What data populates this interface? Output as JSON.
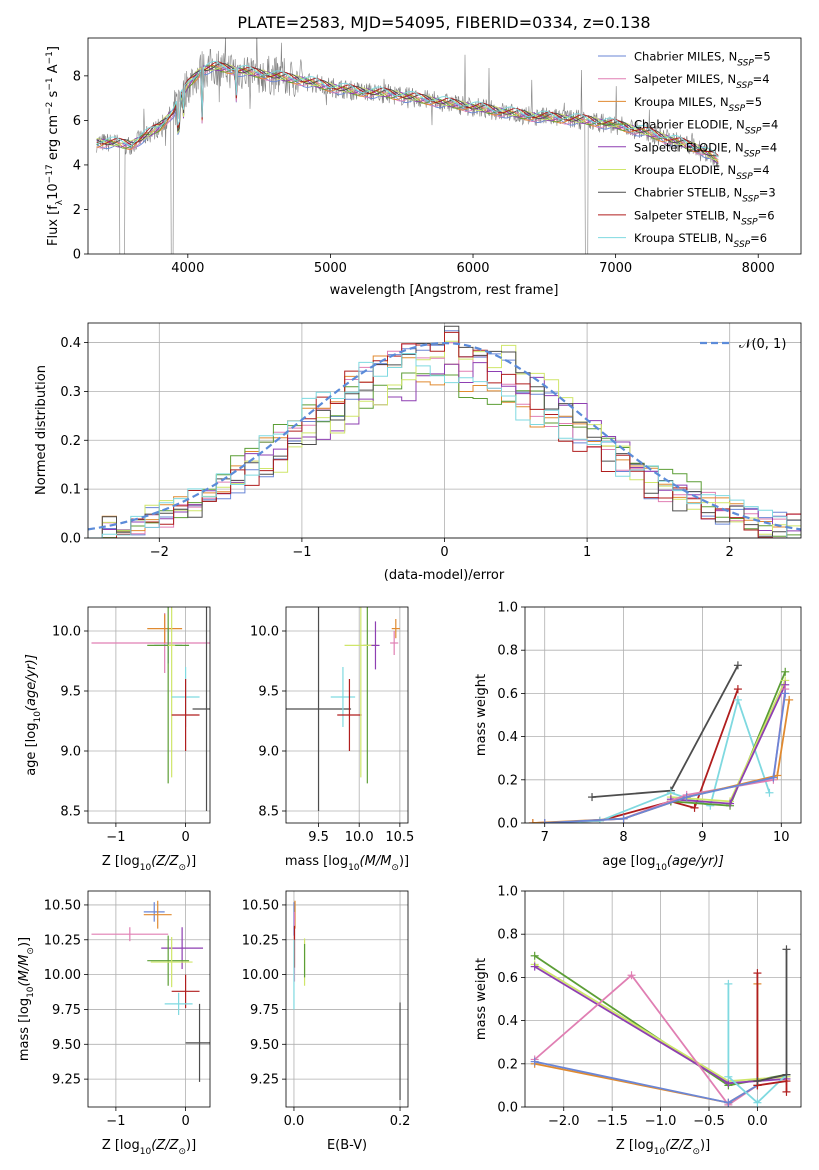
{
  "figure": {
    "title": "PLATE=2583, MJD=54095, FIBERID=0334, z=0.138"
  },
  "colors": {
    "Chabrier MILES": "#6a86d6",
    "Salpeter MILES": "#e07fb3",
    "Kroupa MILES": "#e08a30",
    "Chabrier ELODIE": "#5c9e36",
    "Salpeter ELODIE": "#8e3fb2",
    "Kroupa ELODIE": "#cfe66a",
    "Chabrier STELIB": "#4d4d4d",
    "Salpeter STELIB": "#b01e1e",
    "Kroupa STELIB": "#7fd9e0"
  },
  "chart_data": [
    {
      "id": "spectrum",
      "type": "line",
      "xlabel": "wavelength [Angstrom, rest frame]",
      "ylabel_main": "Flux [f",
      "ylabel_sub": "λ",
      "ylabel_mid": "10",
      "ylabel_exp": "−17",
      "ylabel_tail": " erg cm",
      "ylabel_exp2": "−2",
      "ylabel_tail2": " s",
      "ylabel_exp3": "−1",
      "ylabel_tail3": " A",
      "ylabel_exp4": "−1",
      "ylabel_end": "]",
      "xlim": [
        3300,
        8300
      ],
      "ylim": [
        0,
        9.7
      ],
      "xticks": [
        4000,
        5000,
        6000,
        7000,
        8000
      ],
      "yticks": [
        0,
        2,
        4,
        6,
        8
      ],
      "grid": false,
      "legend_position": "top-right",
      "series": [
        {
          "label": "Chabrier MILES, N",
          "sub": "SSP",
          "eq": "=5"
        },
        {
          "label": "Salpeter MILES, N",
          "sub": "SSP",
          "eq": "=4"
        },
        {
          "label": "Kroupa MILES, N",
          "sub": "SSP",
          "eq": "=5"
        },
        {
          "label": "Chabrier ELODIE, N",
          "sub": "SSP",
          "eq": "=4"
        },
        {
          "label": "Salpeter ELODIE, N",
          "sub": "SSP",
          "eq": "=4"
        },
        {
          "label": "Kroupa ELODIE, N",
          "sub": "SSP",
          "eq": "=4"
        },
        {
          "label": "Chabrier STELIB, N",
          "sub": "SSP",
          "eq": "=3"
        },
        {
          "label": "Salpeter STELIB, N",
          "sub": "SSP",
          "eq": "=6"
        },
        {
          "label": "Kroupa STELIB, N",
          "sub": "SSP",
          "eq": "=6"
        }
      ],
      "observed_color": "#808080",
      "continuum_points": [
        [
          3360,
          5.0
        ],
        [
          3450,
          5.0
        ],
        [
          3600,
          4.9
        ],
        [
          3700,
          5.3
        ],
        [
          3800,
          5.7
        ],
        [
          3900,
          6.4
        ],
        [
          4000,
          7.6
        ],
        [
          4100,
          8.3
        ],
        [
          4200,
          8.4
        ],
        [
          4400,
          8.2
        ],
        [
          4600,
          8.0
        ],
        [
          4800,
          7.8
        ],
        [
          5000,
          7.5
        ],
        [
          5200,
          7.3
        ],
        [
          5400,
          7.2
        ],
        [
          5600,
          7.0
        ],
        [
          5800,
          6.8
        ],
        [
          6000,
          6.6
        ],
        [
          6200,
          6.4
        ],
        [
          6400,
          6.2
        ],
        [
          6600,
          6.1
        ],
        [
          6800,
          6.0
        ],
        [
          7000,
          5.8
        ],
        [
          7200,
          5.5
        ],
        [
          7400,
          5.1
        ],
        [
          7600,
          4.7
        ],
        [
          7720,
          4.2
        ]
      ]
    },
    {
      "id": "residuals",
      "type": "histogram",
      "xlabel": "(data-model)/error",
      "ylabel": "Normed distribution",
      "xlim": [
        -2.5,
        2.5
      ],
      "ylim": [
        0,
        0.44
      ],
      "xticks": [
        -2,
        -1,
        0,
        1,
        2
      ],
      "yticks": [
        0.0,
        0.1,
        0.2,
        0.3,
        0.4
      ],
      "grid": true,
      "legend": {
        "label_main": "𝒩(0, 1)",
        "color": "#5b8bd9"
      },
      "gaussian": {
        "mean": 0,
        "sigma": 1
      },
      "bin_width": 0.1
    },
    {
      "id": "age_vs_Z",
      "type": "errorbar",
      "xlabel_main": "Z [log",
      "xlabel_sub": "10",
      "xlabel_tail": "(Z/Z",
      "xlabel_sun": "⊙",
      "xlabel_end": ")]",
      "ylabel_main": "age  [log",
      "ylabel_sub": "10",
      "ylabel_tail": "(age/yr)]",
      "xlim": [
        -1.4,
        0.35
      ],
      "ylim": [
        8.4,
        10.2
      ],
      "xticks": [
        -1,
        0
      ],
      "yticks": [
        8.5,
        9.0,
        9.5,
        10.0
      ],
      "grid": true,
      "points": [
        {
          "model": "Salpeter MILES",
          "x": -0.3,
          "xerr": 1.05,
          "y": 9.9,
          "yerr": 0.25
        },
        {
          "model": "Kroupa MILES",
          "x": -0.3,
          "xerr": 0.25,
          "y": 10.02,
          "yerr": 0.12
        },
        {
          "model": "Chabrier MILES",
          "x": -0.25,
          "xerr": 0.2,
          "y": 9.88,
          "yerr": 0.15
        },
        {
          "model": "Chabrier ELODIE",
          "x": -0.25,
          "xerr": 0.3,
          "y": 9.88,
          "yerr": 1.15
        },
        {
          "model": "Kroupa ELODIE",
          "x": -0.2,
          "xerr": 0.05,
          "y": 9.88,
          "yerr": 1.1
        },
        {
          "model": "Kroupa STELIB",
          "x": 0.0,
          "xerr": 0.2,
          "y": 9.45,
          "yerr": 0.25
        },
        {
          "model": "Salpeter STELIB",
          "x": 0.0,
          "xerr": 0.2,
          "y": 9.3,
          "yerr": 0.3
        },
        {
          "model": "Chabrier STELIB",
          "x": 0.3,
          "xerr": 0.2,
          "y": 9.35,
          "yerr": 0.85
        }
      ]
    },
    {
      "id": "age_vs_mass",
      "type": "errorbar",
      "xlabel_main": "mass [log",
      "xlabel_sub": "10",
      "xlabel_tail": "(M/M",
      "xlabel_sun": "⊙",
      "xlabel_end": ")]",
      "xlim": [
        9.1,
        10.6
      ],
      "ylim": [
        8.4,
        10.2
      ],
      "xticks": [
        9.5,
        10.0,
        10.5
      ],
      "yticks": [
        8.5,
        9.0,
        9.5,
        10.0
      ],
      "grid": true,
      "points": [
        {
          "model": "Chabrier STELIB",
          "x": 9.5,
          "xerr": 0.4,
          "y": 9.35,
          "yerr": 0.85
        },
        {
          "model": "Kroupa STELIB",
          "x": 9.8,
          "xerr": 0.15,
          "y": 9.45,
          "yerr": 0.25
        },
        {
          "model": "Salpeter STELIB",
          "x": 9.88,
          "xerr": 0.15,
          "y": 9.3,
          "yerr": 0.3
        },
        {
          "model": "Salpeter MILES",
          "x": 10.43,
          "xerr": 0.05,
          "y": 9.9,
          "yerr": 0.1
        },
        {
          "model": "Kroupa MILES",
          "x": 10.45,
          "xerr": 0.05,
          "y": 10.02,
          "yerr": 0.08
        },
        {
          "model": "Chabrier ELODIE",
          "x": 10.1,
          "xerr": 0.05,
          "y": 9.88,
          "yerr": 1.15
        },
        {
          "model": "Kroupa ELODIE",
          "x": 10.02,
          "xerr": 0.2,
          "y": 9.88,
          "yerr": 1.1
        },
        {
          "model": "Salpeter ELODIE",
          "x": 10.2,
          "xerr": 0.05,
          "y": 9.88,
          "yerr": 0.2
        }
      ]
    },
    {
      "id": "massweight_vs_age",
      "type": "line",
      "xlabel_main": "age  [log",
      "xlabel_sub": "10",
      "xlabel_tail": "(age/yr)]",
      "ylabel": "mass weight",
      "xlim": [
        6.75,
        10.25
      ],
      "ylim": [
        0,
        1.0
      ],
      "xticks": [
        7,
        8,
        9,
        10
      ],
      "yticks": [
        0.0,
        0.2,
        0.4,
        0.6,
        0.8,
        1.0
      ],
      "grid": true,
      "series": [
        {
          "model": "Chabrier STELIB",
          "x": [
            7.6,
            8.6,
            9.45
          ],
          "y": [
            0.12,
            0.15,
            0.73
          ]
        },
        {
          "model": "Salpeter STELIB",
          "x": [
            6.85,
            7.7,
            8.6,
            8.9,
            9.45
          ],
          "y": [
            0.0,
            0.01,
            0.1,
            0.07,
            0.62
          ]
        },
        {
          "model": "Kroupa STELIB",
          "x": [
            7.0,
            7.7,
            8.6,
            9.1,
            9.45,
            9.85
          ],
          "y": [
            0.0,
            0.01,
            0.14,
            0.08,
            0.57,
            0.14
          ]
        },
        {
          "model": "Chabrier ELODIE",
          "x": [
            8.6,
            9.35,
            10.05
          ],
          "y": [
            0.1,
            0.08,
            0.7
          ]
        },
        {
          "model": "Kroupa ELODIE",
          "x": [
            8.6,
            9.35,
            10.05
          ],
          "y": [
            0.12,
            0.1,
            0.66
          ]
        },
        {
          "model": "Salpeter ELODIE",
          "x": [
            8.6,
            9.35,
            10.05
          ],
          "y": [
            0.11,
            0.09,
            0.64
          ]
        },
        {
          "model": "Salpeter MILES",
          "x": [
            7.0,
            8.0,
            8.8,
            9.9,
            10.05
          ],
          "y": [
            0.0,
            0.02,
            0.13,
            0.2,
            0.62
          ]
        },
        {
          "model": "Kroupa MILES",
          "x": [
            6.85,
            8.0,
            8.8,
            9.95,
            10.1
          ],
          "y": [
            0.0,
            0.02,
            0.12,
            0.22,
            0.57
          ]
        },
        {
          "model": "Chabrier MILES",
          "x": [
            7.0,
            8.0,
            8.8,
            9.9,
            10.05
          ],
          "y": [
            0.0,
            0.02,
            0.12,
            0.21,
            0.6
          ]
        }
      ]
    },
    {
      "id": "mass_vs_Z",
      "type": "errorbar",
      "xlabel_main": "Z [log",
      "xlabel_sub": "10",
      "xlabel_tail": "(Z/Z",
      "xlabel_sun": "⊙",
      "xlabel_end": ")]",
      "ylabel_main": "mass [log",
      "ylabel_sub": "10",
      "ylabel_tail": "(M/M",
      "ylabel_sun": "⊙",
      "ylabel_end": ")]",
      "xlim": [
        -1.4,
        0.35
      ],
      "ylim": [
        9.05,
        10.6
      ],
      "xticks": [
        -1,
        0
      ],
      "yticks": [
        9.25,
        9.5,
        9.75,
        10.0,
        10.25,
        10.5
      ],
      "grid": true,
      "points": [
        {
          "model": "Chabrier MILES",
          "x": -0.45,
          "xerr": 0.15,
          "y": 10.45,
          "yerr": 0.07
        },
        {
          "model": "Kroupa MILES",
          "x": -0.4,
          "xerr": 0.2,
          "y": 10.43,
          "yerr": 0.1
        },
        {
          "model": "Salpeter MILES",
          "x": -0.8,
          "xerr": 0.55,
          "y": 10.29,
          "yerr": 0.05
        },
        {
          "model": "Salpeter ELODIE",
          "x": -0.05,
          "xerr": 0.3,
          "y": 10.19,
          "yerr": 0.15
        },
        {
          "model": "Chabrier ELODIE",
          "x": -0.25,
          "xerr": 0.3,
          "y": 10.1,
          "yerr": 0.18
        },
        {
          "model": "Kroupa ELODIE",
          "x": -0.2,
          "xerr": 0.3,
          "y": 10.09,
          "yerr": 0.18
        },
        {
          "model": "Salpeter STELIB",
          "x": 0.0,
          "xerr": 0.2,
          "y": 9.88,
          "yerr": 0.12
        },
        {
          "model": "Kroupa STELIB",
          "x": -0.1,
          "xerr": 0.2,
          "y": 9.79,
          "yerr": 0.08
        },
        {
          "model": "Chabrier STELIB",
          "x": 0.2,
          "xerr": 0.2,
          "y": 9.51,
          "yerr": 0.28
        }
      ]
    },
    {
      "id": "mass_vs_ebv",
      "type": "errorbar",
      "xlabel": "E(B-V)",
      "xlim": [
        -0.015,
        0.215
      ],
      "ylim": [
        9.05,
        10.6
      ],
      "xticks": [
        0.0,
        0.2
      ],
      "yticks": [
        9.25,
        9.5,
        9.75,
        10.0,
        10.25,
        10.5
      ],
      "grid": true,
      "points": [
        {
          "model": "Chabrier MILES",
          "x": 0.0,
          "xerr": 0,
          "y": 10.4,
          "yerr": 0.12
        },
        {
          "model": "Kroupa MILES",
          "x": 0.002,
          "xerr": 0,
          "y": 10.43,
          "yerr": 0.1
        },
        {
          "model": "Salpeter MILES",
          "x": 0.001,
          "xerr": 0,
          "y": 10.2,
          "yerr": 0.25
        },
        {
          "model": "Salpeter STELIB",
          "x": 0.001,
          "xerr": 0,
          "y": 10.2,
          "yerr": 0.15
        },
        {
          "model": "Kroupa STELIB",
          "x": 0.0,
          "xerr": 0,
          "y": 10.0,
          "yerr": 0.25
        },
        {
          "model": "Kroupa ELODIE",
          "x": 0.02,
          "xerr": 0,
          "y": 10.09,
          "yerr": 0.17
        },
        {
          "model": "Chabrier ELODIE",
          "x": 0.02,
          "xerr": 0,
          "y": 10.1,
          "yerr": 0.12
        },
        {
          "model": "Chabrier STELIB",
          "x": 0.2,
          "xerr": 0,
          "y": 9.45,
          "yerr": 0.35
        }
      ]
    },
    {
      "id": "massweight_vs_Z",
      "type": "line",
      "xlabel_main": "Z [log",
      "xlabel_sub": "10",
      "xlabel_tail": "(Z/Z",
      "xlabel_sun": "⊙",
      "xlabel_end": ")]",
      "ylabel": "mass weight",
      "xlim": [
        -2.4,
        0.45
      ],
      "ylim": [
        0,
        1.0
      ],
      "xticks": [
        -2.0,
        -1.5,
        -1.0,
        -0.5,
        0.0
      ],
      "yticks": [
        0.0,
        0.2,
        0.4,
        0.6,
        0.8,
        1.0
      ],
      "grid": true,
      "series": [
        {
          "model": "Chabrier ELODIE",
          "x": [
            -2.3,
            -0.3,
            0.3
          ],
          "y": [
            0.7,
            0.1,
            0.15
          ]
        },
        {
          "model": "Kroupa ELODIE",
          "x": [
            -2.3,
            -0.3,
            0.3
          ],
          "y": [
            0.66,
            0.12,
            0.14
          ]
        },
        {
          "model": "Salpeter ELODIE",
          "x": [
            -2.3,
            -0.3,
            0.3
          ],
          "y": [
            0.65,
            0.11,
            0.13
          ]
        },
        {
          "model": "Salpeter MILES",
          "x": [
            -2.3,
            -1.3,
            -0.3,
            0.0
          ],
          "y": [
            0.22,
            0.61,
            0.01,
            0.1
          ]
        },
        {
          "model": "Kroupa MILES",
          "x": [
            -2.3,
            -0.3,
            0.0,
            0.0
          ],
          "y": [
            0.2,
            0.02,
            0.1,
            0.57
          ]
        },
        {
          "model": "Chabrier MILES",
          "x": [
            -2.3,
            -0.3,
            0.0
          ],
          "y": [
            0.21,
            0.02,
            0.1
          ]
        },
        {
          "model": "Kroupa STELIB",
          "x": [
            -0.3,
            -0.3,
            0.0,
            0.3
          ],
          "y": [
            0.57,
            0.14,
            0.02,
            0.15
          ]
        },
        {
          "model": "Salpeter STELIB",
          "x": [
            -0.0,
            -0.0,
            0.3,
            0.3
          ],
          "y": [
            0.62,
            0.1,
            0.12,
            0.07
          ]
        },
        {
          "model": "Chabrier STELIB",
          "x": [
            0.3,
            0.3,
            0.0,
            0.3
          ],
          "y": [
            0.73,
            0.15,
            0.12,
            0.15
          ]
        }
      ]
    }
  ]
}
